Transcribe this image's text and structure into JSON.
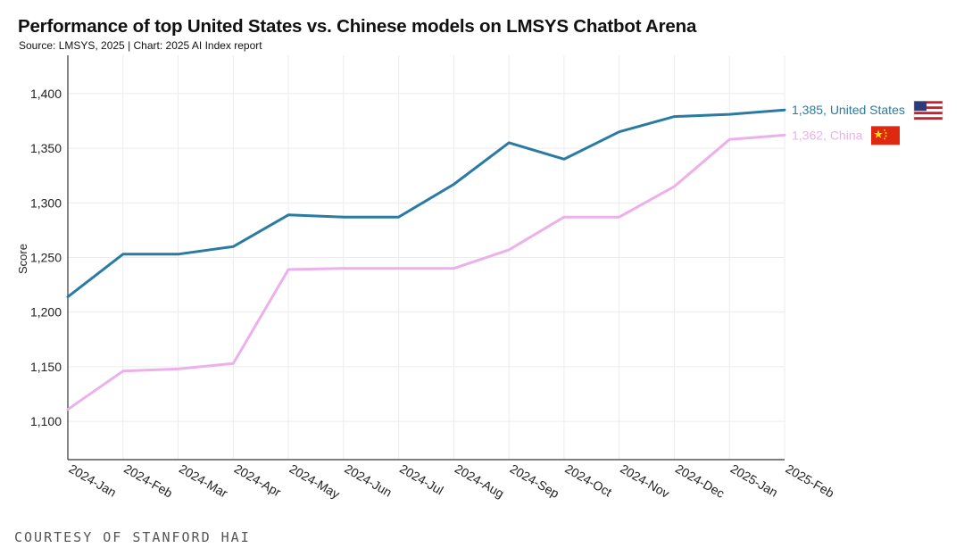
{
  "header": {
    "title": "Performance of top United States vs. Chinese models on LMSYS Chatbot Arena",
    "subtitle": "Source: LMSYS, 2025 | Chart: 2025 AI Index report"
  },
  "footer": {
    "courtesy": "COURTESY OF STANFORD HAI"
  },
  "chart_data": {
    "type": "line",
    "title": "Performance of top United States vs. Chinese models on LMSYS Chatbot Arena",
    "xlabel": "",
    "ylabel": "Score",
    "categories": [
      "2024-Jan",
      "2024-Feb",
      "2024-Mar",
      "2024-Apr",
      "2024-May",
      "2024-Jun",
      "2024-Jul",
      "2024-Aug",
      "2024-Sep",
      "2024-Oct",
      "2024-Nov",
      "2024-Dec",
      "2025-Jan",
      "2025-Feb"
    ],
    "ylim": [
      1065,
      1435
    ],
    "yticks": [
      1100,
      1150,
      1200,
      1250,
      1300,
      1350,
      1400
    ],
    "ytick_labels": [
      "1,100",
      "1,150",
      "1,200",
      "1,250",
      "1,300",
      "1,350",
      "1,400"
    ],
    "grid": true,
    "series": [
      {
        "name": "United States",
        "color": "#2a7ba3",
        "flag": "us-flag-icon",
        "end_label": "1,385, United States",
        "values": [
          1214,
          1253,
          1253,
          1260,
          1289,
          1287,
          1287,
          1317,
          1355,
          1340,
          1365,
          1379,
          1381,
          1385
        ]
      },
      {
        "name": "China",
        "color": "#ecb0ec",
        "flag": "china-flag-icon",
        "end_label": "1,362, China",
        "values": [
          1111,
          1146,
          1148,
          1153,
          1239,
          1240,
          1240,
          1240,
          1257,
          1287,
          1287,
          1315,
          1358,
          1362
        ]
      }
    ]
  }
}
